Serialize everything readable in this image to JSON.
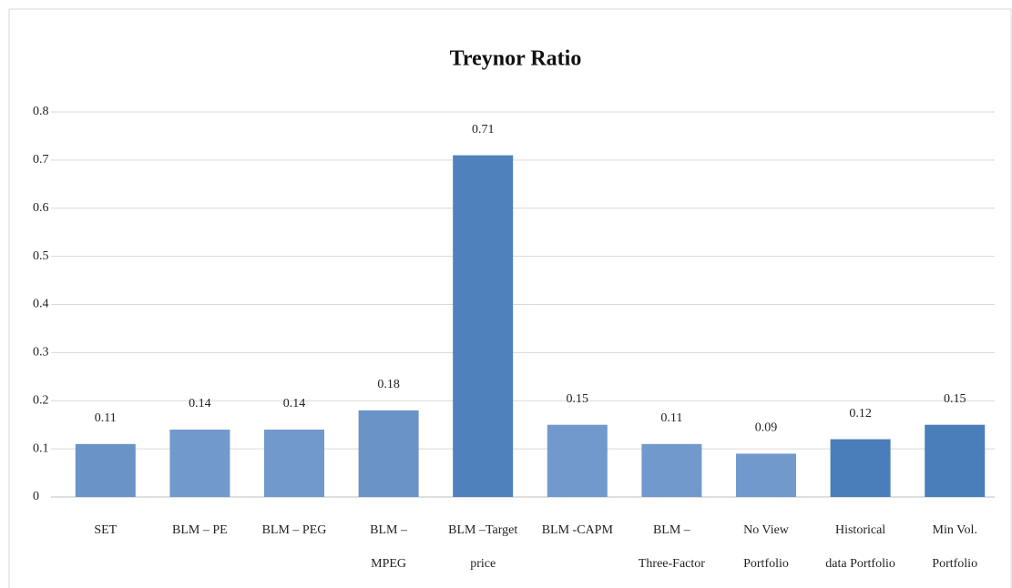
{
  "chart_data": {
    "type": "bar",
    "title": "Treynor Ratio",
    "categories": [
      "SET",
      "BLM – PE",
      "BLM – PEG",
      "BLM –\nMPEG",
      "BLM –Target\nprice",
      "BLM -CAPM",
      "BLM –\nThree-Factor",
      "No View\nPortfolio",
      "Historical\ndata Portfolio",
      "Min Vol.\nPortfolio"
    ],
    "values": [
      0.11,
      0.14,
      0.14,
      0.18,
      0.71,
      0.15,
      0.11,
      0.09,
      0.12,
      0.15
    ],
    "colors": [
      "#6a93c8",
      "#7199cc",
      "#7199cc",
      "#6a93c8",
      "#4f81bd",
      "#7199cc",
      "#7199cc",
      "#7199cc",
      "#4a7ebb",
      "#4a7ebb"
    ],
    "ylim": [
      0,
      0.8
    ],
    "yticks": [
      0,
      0.1,
      0.2,
      0.3,
      0.4,
      0.5,
      0.6,
      0.7,
      0.8
    ],
    "grid": true
  }
}
